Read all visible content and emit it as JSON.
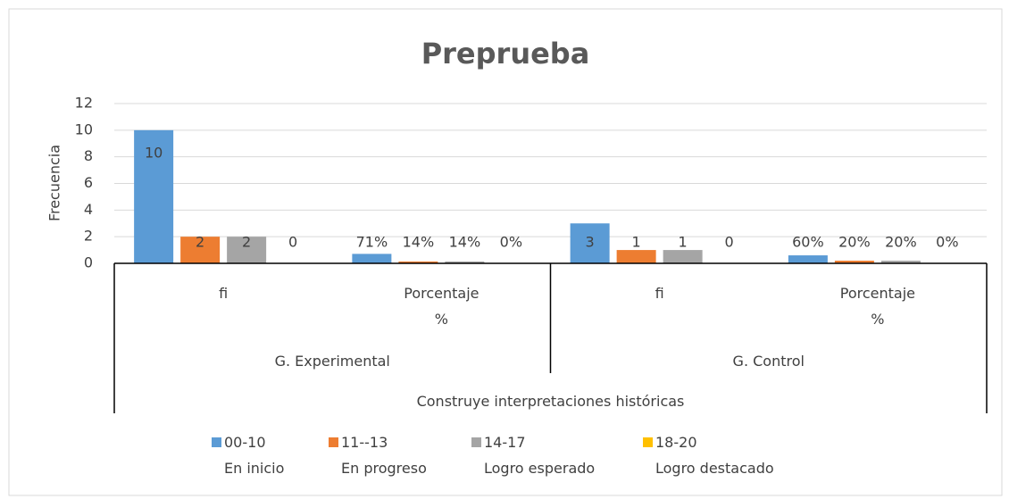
{
  "chart_data": {
    "type": "bar",
    "title": "Preprueba",
    "y_label": "Frecuencia",
    "categories": [
      "fi",
      "Porcentaje\n%",
      "fi",
      "Porcentaje\n%"
    ],
    "groups": [
      "G. Experimental",
      "G. Control"
    ],
    "super_group": "Construye interpretaciones históricas",
    "series": [
      {
        "name": "00-10\nEn inicio",
        "color": "#5b9bd5",
        "values": [
          10,
          0.71,
          3,
          0.6
        ],
        "value_labels": [
          "10",
          "71%",
          "3",
          "60%"
        ]
      },
      {
        "name": "11--13\nEn progreso",
        "color": "#ed7d31",
        "values": [
          2,
          0.14,
          1,
          0.2
        ],
        "value_labels": [
          "2",
          "14%",
          "1",
          "20%"
        ]
      },
      {
        "name": "14-17\nLogro esperado",
        "color": "#a5a5a5",
        "values": [
          2,
          0.14,
          1,
          0.2
        ],
        "value_labels": [
          "2",
          "14%",
          "1",
          "20%"
        ]
      },
      {
        "name": "18-20\nLogro destacado",
        "color": "#ffc000",
        "values": [
          0,
          0,
          0,
          0
        ],
        "value_labels": [
          "0",
          "0%",
          "0",
          "0%"
        ]
      }
    ],
    "ylim": [
      0,
      12
    ],
    "yticks": [
      0,
      2,
      4,
      6,
      8,
      10,
      12
    ],
    "grid": true,
    "legend": "bottom"
  }
}
